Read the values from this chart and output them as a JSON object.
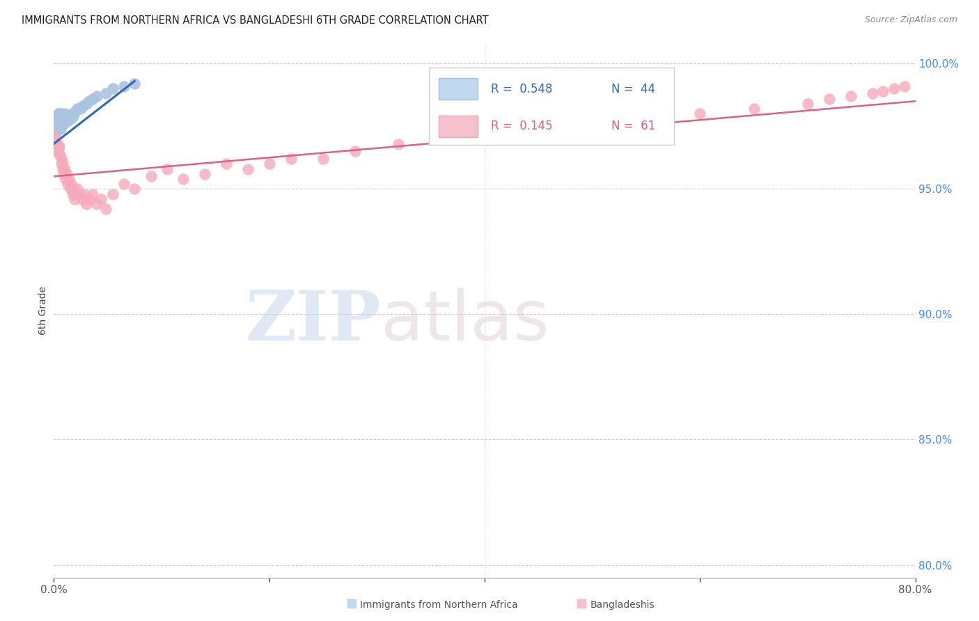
{
  "title": "IMMIGRANTS FROM NORTHERN AFRICA VS BANGLADESHI 6TH GRADE CORRELATION CHART",
  "source": "Source: ZipAtlas.com",
  "ylabel": "6th Grade",
  "xlim": [
    0.0,
    0.8
  ],
  "ylim": [
    0.795,
    1.008
  ],
  "yticks": [
    0.8,
    0.85,
    0.9,
    0.95,
    1.0
  ],
  "ytick_labels": [
    "80.0%",
    "85.0%",
    "90.0%",
    "95.0%",
    "100.0%"
  ],
  "xtick_positions": [
    0.0,
    0.2,
    0.4,
    0.6,
    0.8
  ],
  "xtick_labels": [
    "0.0%",
    "",
    "",
    "",
    "80.0%"
  ],
  "legend_R_blue": "0.548",
  "legend_N_blue": "44",
  "legend_R_pink": "0.145",
  "legend_N_pink": "61",
  "blue_dot_color": "#aac4e2",
  "blue_line_color": "#3366bb",
  "pink_dot_color": "#f5aabb",
  "pink_line_color": "#e06080",
  "legend_blue_fill": "#c0d8f0",
  "legend_pink_fill": "#f8c0cc",
  "blue_x": [
    0.001,
    0.002,
    0.002,
    0.003,
    0.003,
    0.003,
    0.004,
    0.004,
    0.004,
    0.005,
    0.005,
    0.005,
    0.006,
    0.006,
    0.006,
    0.007,
    0.007,
    0.007,
    0.008,
    0.008,
    0.009,
    0.009,
    0.01,
    0.01,
    0.011,
    0.012,
    0.013,
    0.014,
    0.015,
    0.016,
    0.017,
    0.018,
    0.02,
    0.022,
    0.025,
    0.027,
    0.03,
    0.033,
    0.036,
    0.04,
    0.048,
    0.055,
    0.065,
    0.075
  ],
  "blue_y": [
    0.975,
    0.977,
    0.979,
    0.973,
    0.976,
    0.979,
    0.974,
    0.977,
    0.98,
    0.975,
    0.977,
    0.98,
    0.974,
    0.977,
    0.979,
    0.975,
    0.977,
    0.98,
    0.976,
    0.979,
    0.976,
    0.979,
    0.977,
    0.98,
    0.978,
    0.979,
    0.977,
    0.978,
    0.979,
    0.978,
    0.98,
    0.979,
    0.981,
    0.982,
    0.982,
    0.983,
    0.984,
    0.985,
    0.986,
    0.987,
    0.988,
    0.99,
    0.991,
    0.992
  ],
  "pink_x": [
    0.001,
    0.002,
    0.003,
    0.003,
    0.004,
    0.005,
    0.005,
    0.006,
    0.007,
    0.008,
    0.008,
    0.009,
    0.01,
    0.011,
    0.012,
    0.013,
    0.014,
    0.015,
    0.016,
    0.017,
    0.018,
    0.019,
    0.02,
    0.022,
    0.024,
    0.026,
    0.028,
    0.03,
    0.033,
    0.036,
    0.04,
    0.044,
    0.048,
    0.055,
    0.065,
    0.075,
    0.09,
    0.105,
    0.12,
    0.14,
    0.16,
    0.18,
    0.2,
    0.22,
    0.25,
    0.28,
    0.32,
    0.36,
    0.4,
    0.45,
    0.5,
    0.55,
    0.6,
    0.65,
    0.7,
    0.72,
    0.74,
    0.76,
    0.77,
    0.78,
    0.79
  ],
  "pink_y": [
    0.971,
    0.969,
    0.965,
    0.968,
    0.966,
    0.964,
    0.967,
    0.963,
    0.96,
    0.958,
    0.961,
    0.956,
    0.958,
    0.954,
    0.956,
    0.952,
    0.954,
    0.95,
    0.952,
    0.948,
    0.95,
    0.946,
    0.948,
    0.95,
    0.948,
    0.946,
    0.948,
    0.944,
    0.946,
    0.948,
    0.944,
    0.946,
    0.942,
    0.948,
    0.952,
    0.95,
    0.955,
    0.958,
    0.954,
    0.956,
    0.96,
    0.958,
    0.96,
    0.962,
    0.962,
    0.965,
    0.968,
    0.97,
    0.972,
    0.974,
    0.976,
    0.978,
    0.98,
    0.982,
    0.984,
    0.986,
    0.987,
    0.988,
    0.989,
    0.99,
    0.991
  ],
  "blue_line_x": [
    0.0,
    0.075
  ],
  "blue_line_y": [
    0.968,
    0.993
  ],
  "pink_line_x": [
    0.0,
    0.8
  ],
  "pink_line_y": [
    0.955,
    0.985
  ],
  "watermark_zip": "ZIP",
  "watermark_atlas": "atlas",
  "zip_color": "#c5d8ec",
  "atlas_color": "#ddc8d5"
}
